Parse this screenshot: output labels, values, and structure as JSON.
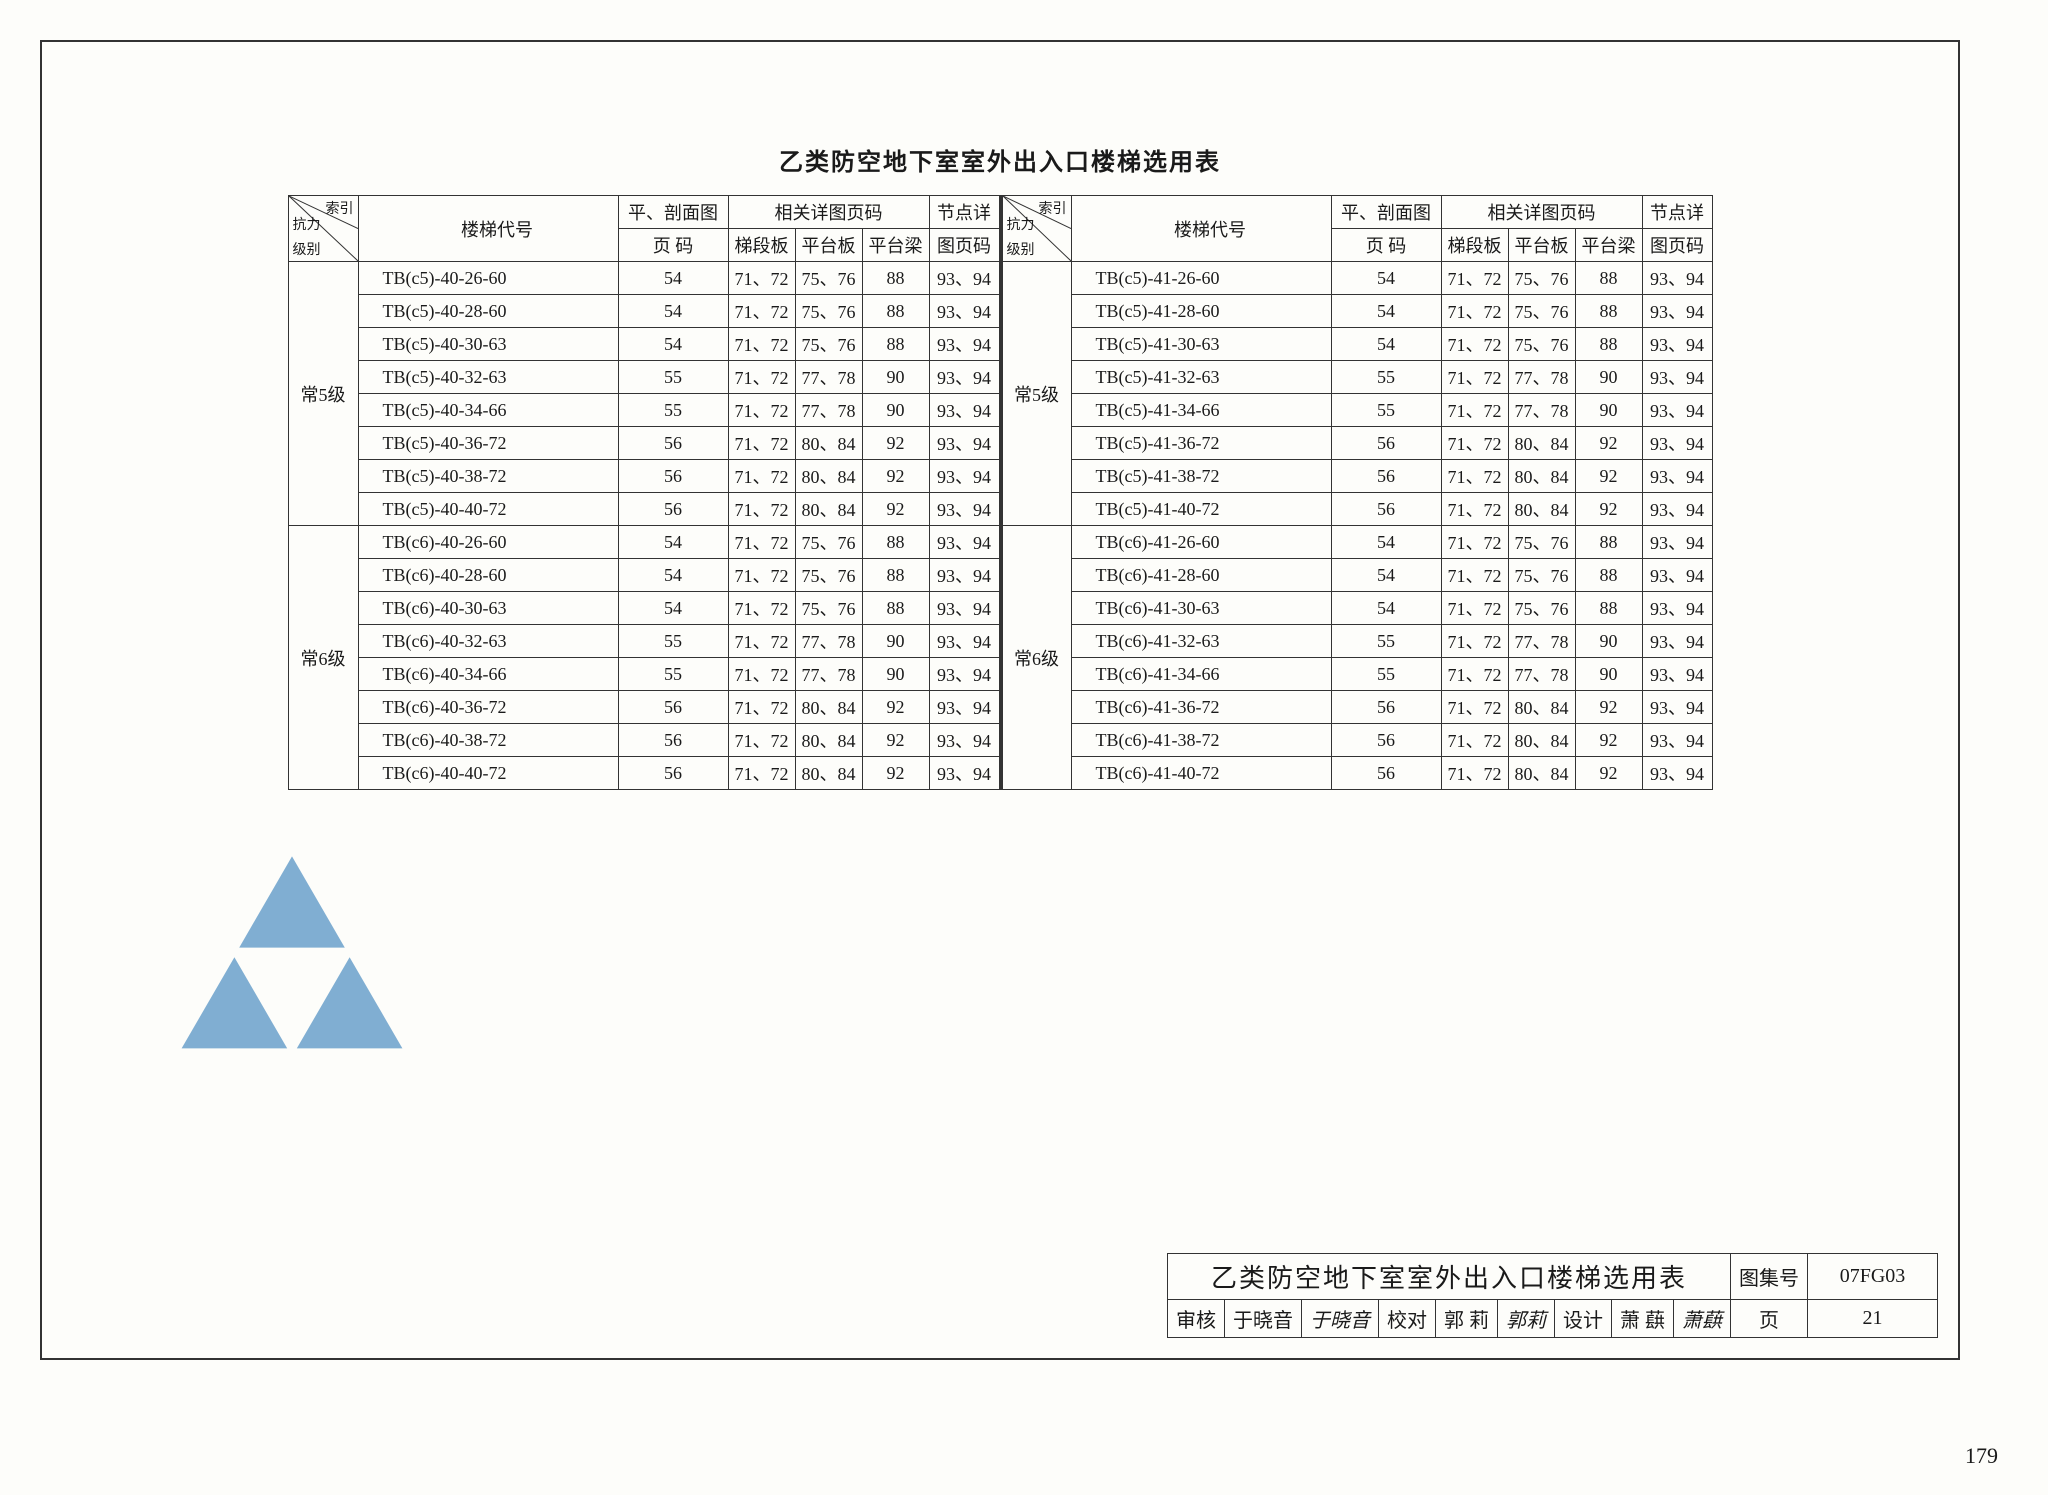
{
  "title": "乙类防空地下室室外出入口楼梯选用表",
  "page_number": "179",
  "header": {
    "diag_top": "索引",
    "diag_mid": "抗力",
    "diag_bot": "级别",
    "col_code": "楼梯代号",
    "col_plan_top": "平、剖面图",
    "col_plan_bot": "页  码",
    "col_detail_group": "相关详图页码",
    "col_sub1": "梯段板",
    "col_sub2": "平台板",
    "col_sub3": "平台梁",
    "col_node_top": "节点详",
    "col_node_bot": "图页码"
  },
  "groups_left": [
    {
      "label": "常5级",
      "rows": [
        [
          "TB(c5)-40-26-60",
          "54",
          "71、72",
          "75、76",
          "88",
          "93、94"
        ],
        [
          "TB(c5)-40-28-60",
          "54",
          "71、72",
          "75、76",
          "88",
          "93、94"
        ],
        [
          "TB(c5)-40-30-63",
          "54",
          "71、72",
          "75、76",
          "88",
          "93、94"
        ],
        [
          "TB(c5)-40-32-63",
          "55",
          "71、72",
          "77、78",
          "90",
          "93、94"
        ],
        [
          "TB(c5)-40-34-66",
          "55",
          "71、72",
          "77、78",
          "90",
          "93、94"
        ],
        [
          "TB(c5)-40-36-72",
          "56",
          "71、72",
          "80、84",
          "92",
          "93、94"
        ],
        [
          "TB(c5)-40-38-72",
          "56",
          "71、72",
          "80、84",
          "92",
          "93、94"
        ],
        [
          "TB(c5)-40-40-72",
          "56",
          "71、72",
          "80、84",
          "92",
          "93、94"
        ]
      ]
    },
    {
      "label": "常6级",
      "rows": [
        [
          "TB(c6)-40-26-60",
          "54",
          "71、72",
          "75、76",
          "88",
          "93、94"
        ],
        [
          "TB(c6)-40-28-60",
          "54",
          "71、72",
          "75、76",
          "88",
          "93、94"
        ],
        [
          "TB(c6)-40-30-63",
          "54",
          "71、72",
          "75、76",
          "88",
          "93、94"
        ],
        [
          "TB(c6)-40-32-63",
          "55",
          "71、72",
          "77、78",
          "90",
          "93、94"
        ],
        [
          "TB(c6)-40-34-66",
          "55",
          "71、72",
          "77、78",
          "90",
          "93、94"
        ],
        [
          "TB(c6)-40-36-72",
          "56",
          "71、72",
          "80、84",
          "92",
          "93、94"
        ],
        [
          "TB(c6)-40-38-72",
          "56",
          "71、72",
          "80、84",
          "92",
          "93、94"
        ],
        [
          "TB(c6)-40-40-72",
          "56",
          "71、72",
          "80、84",
          "92",
          "93、94"
        ]
      ]
    }
  ],
  "groups_right": [
    {
      "label": "常5级",
      "rows": [
        [
          "TB(c5)-41-26-60",
          "54",
          "71、72",
          "75、76",
          "88",
          "93、94"
        ],
        [
          "TB(c5)-41-28-60",
          "54",
          "71、72",
          "75、76",
          "88",
          "93、94"
        ],
        [
          "TB(c5)-41-30-63",
          "54",
          "71、72",
          "75、76",
          "88",
          "93、94"
        ],
        [
          "TB(c5)-41-32-63",
          "55",
          "71、72",
          "77、78",
          "90",
          "93、94"
        ],
        [
          "TB(c5)-41-34-66",
          "55",
          "71、72",
          "77、78",
          "90",
          "93、94"
        ],
        [
          "TB(c5)-41-36-72",
          "56",
          "71、72",
          "80、84",
          "92",
          "93、94"
        ],
        [
          "TB(c5)-41-38-72",
          "56",
          "71、72",
          "80、84",
          "92",
          "93、94"
        ],
        [
          "TB(c5)-41-40-72",
          "56",
          "71、72",
          "80、84",
          "92",
          "93、94"
        ]
      ]
    },
    {
      "label": "常6级",
      "rows": [
        [
          "TB(c6)-41-26-60",
          "54",
          "71、72",
          "75、76",
          "88",
          "93、94"
        ],
        [
          "TB(c6)-41-28-60",
          "54",
          "71、72",
          "75、76",
          "88",
          "93、94"
        ],
        [
          "TB(c6)-41-30-63",
          "54",
          "71、72",
          "75、76",
          "88",
          "93、94"
        ],
        [
          "TB(c6)-41-32-63",
          "55",
          "71、72",
          "77、78",
          "90",
          "93、94"
        ],
        [
          "TB(c6)-41-34-66",
          "55",
          "71、72",
          "77、78",
          "90",
          "93、94"
        ],
        [
          "TB(c6)-41-36-72",
          "56",
          "71、72",
          "80、84",
          "92",
          "93、94"
        ],
        [
          "TB(c6)-41-38-72",
          "56",
          "71、72",
          "80、84",
          "92",
          "93、94"
        ],
        [
          "TB(c6)-41-40-72",
          "56",
          "71、72",
          "80、84",
          "92",
          "93、94"
        ]
      ]
    }
  ],
  "titleblock": {
    "main": "乙类防空地下室室外出入口楼梯选用表",
    "tuji_label": "图集号",
    "tuji_value": "07FG03",
    "review_label": "审核",
    "review_name": "于晓音",
    "review_sig": "于晓音",
    "check_label": "校对",
    "check_name": "郭 莉",
    "check_sig": "郭莉",
    "design_label": "设计",
    "design_name": "萧 蕻",
    "design_sig": "萧蕻",
    "page_label": "页",
    "page_value": "21"
  },
  "style": {
    "border_color": "#333333",
    "background": "#fdfdfa",
    "watermark_color": "#2e7bb8",
    "font_size_body": 18,
    "font_size_title": 24
  }
}
